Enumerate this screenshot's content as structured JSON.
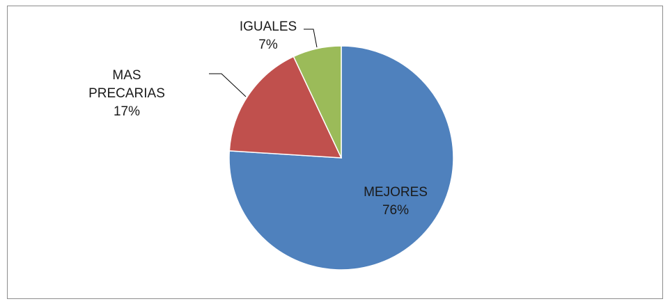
{
  "chart_data": {
    "type": "pie",
    "categories": [
      "MEJORES",
      "MAS PRECARIAS",
      "IGUALES"
    ],
    "values": [
      76,
      17,
      7
    ],
    "value_labels": [
      "76%",
      "17%",
      "7%"
    ],
    "colors": [
      "#4f81bd",
      "#c0504d",
      "#9bbb59"
    ]
  }
}
